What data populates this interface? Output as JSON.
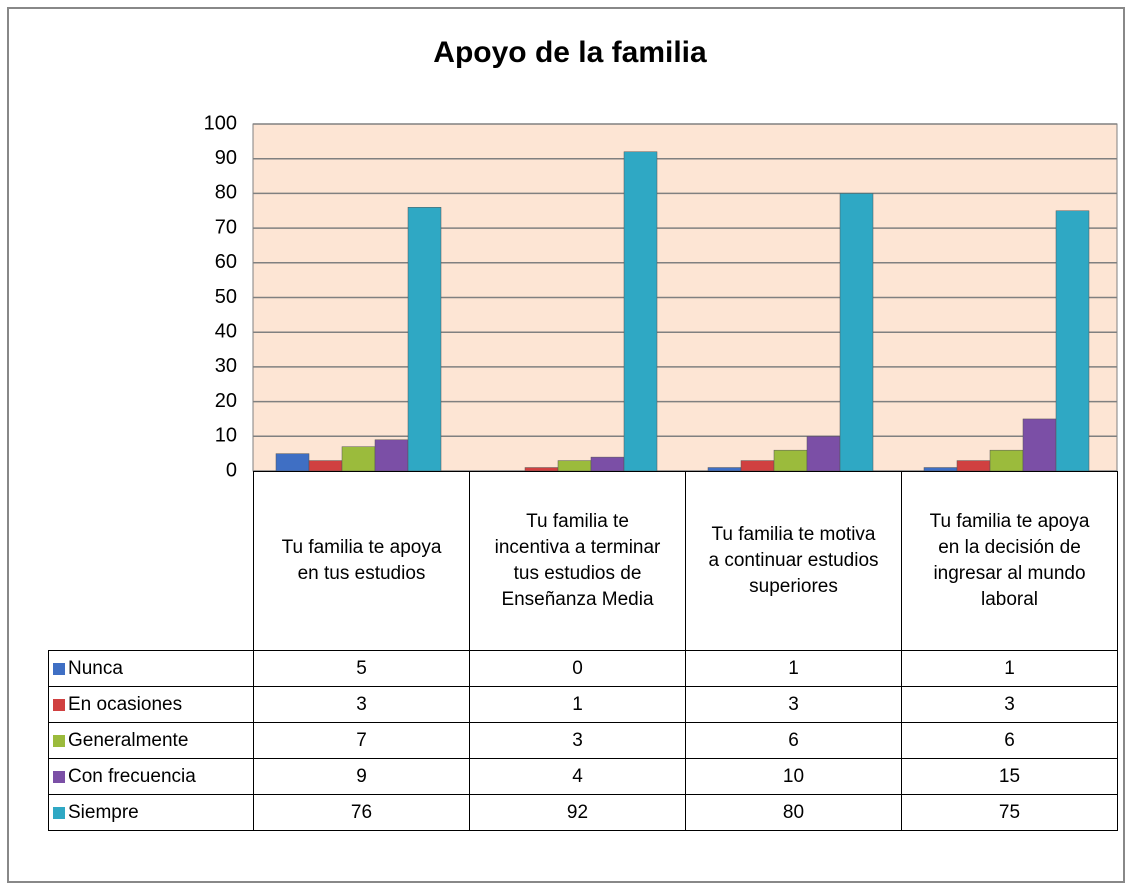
{
  "chart_data": {
    "type": "bar",
    "title": "Apoyo de la familia",
    "categories": [
      "Tu familia te apoya en tus estudios",
      "Tu familia te incentiva a terminar tus estudios de Enseñanza Media",
      "Tu familia te motiva a continuar estudios superiores",
      "Tu familia te apoya en la decisión de ingresar al mundo laboral"
    ],
    "series": [
      {
        "name": "Nunca",
        "color": "#3f6fc4",
        "values": [
          5,
          0,
          1,
          1
        ]
      },
      {
        "name": "En ocasiones",
        "color": "#d04040",
        "values": [
          3,
          1,
          3,
          3
        ]
      },
      {
        "name": "Generalmente",
        "color": "#9bbb3c",
        "values": [
          7,
          3,
          6,
          6
        ]
      },
      {
        "name": "Con frecuencia",
        "color": "#7b4fa6",
        "values": [
          9,
          4,
          10,
          15
        ]
      },
      {
        "name": "Siempre",
        "color": "#2fa8c4",
        "values": [
          76,
          92,
          80,
          75
        ]
      }
    ],
    "ylim": [
      0,
      100
    ],
    "yticks": [
      0,
      10,
      20,
      30,
      40,
      50,
      60,
      70,
      80,
      90,
      100
    ],
    "grid": true,
    "data_table": true
  }
}
